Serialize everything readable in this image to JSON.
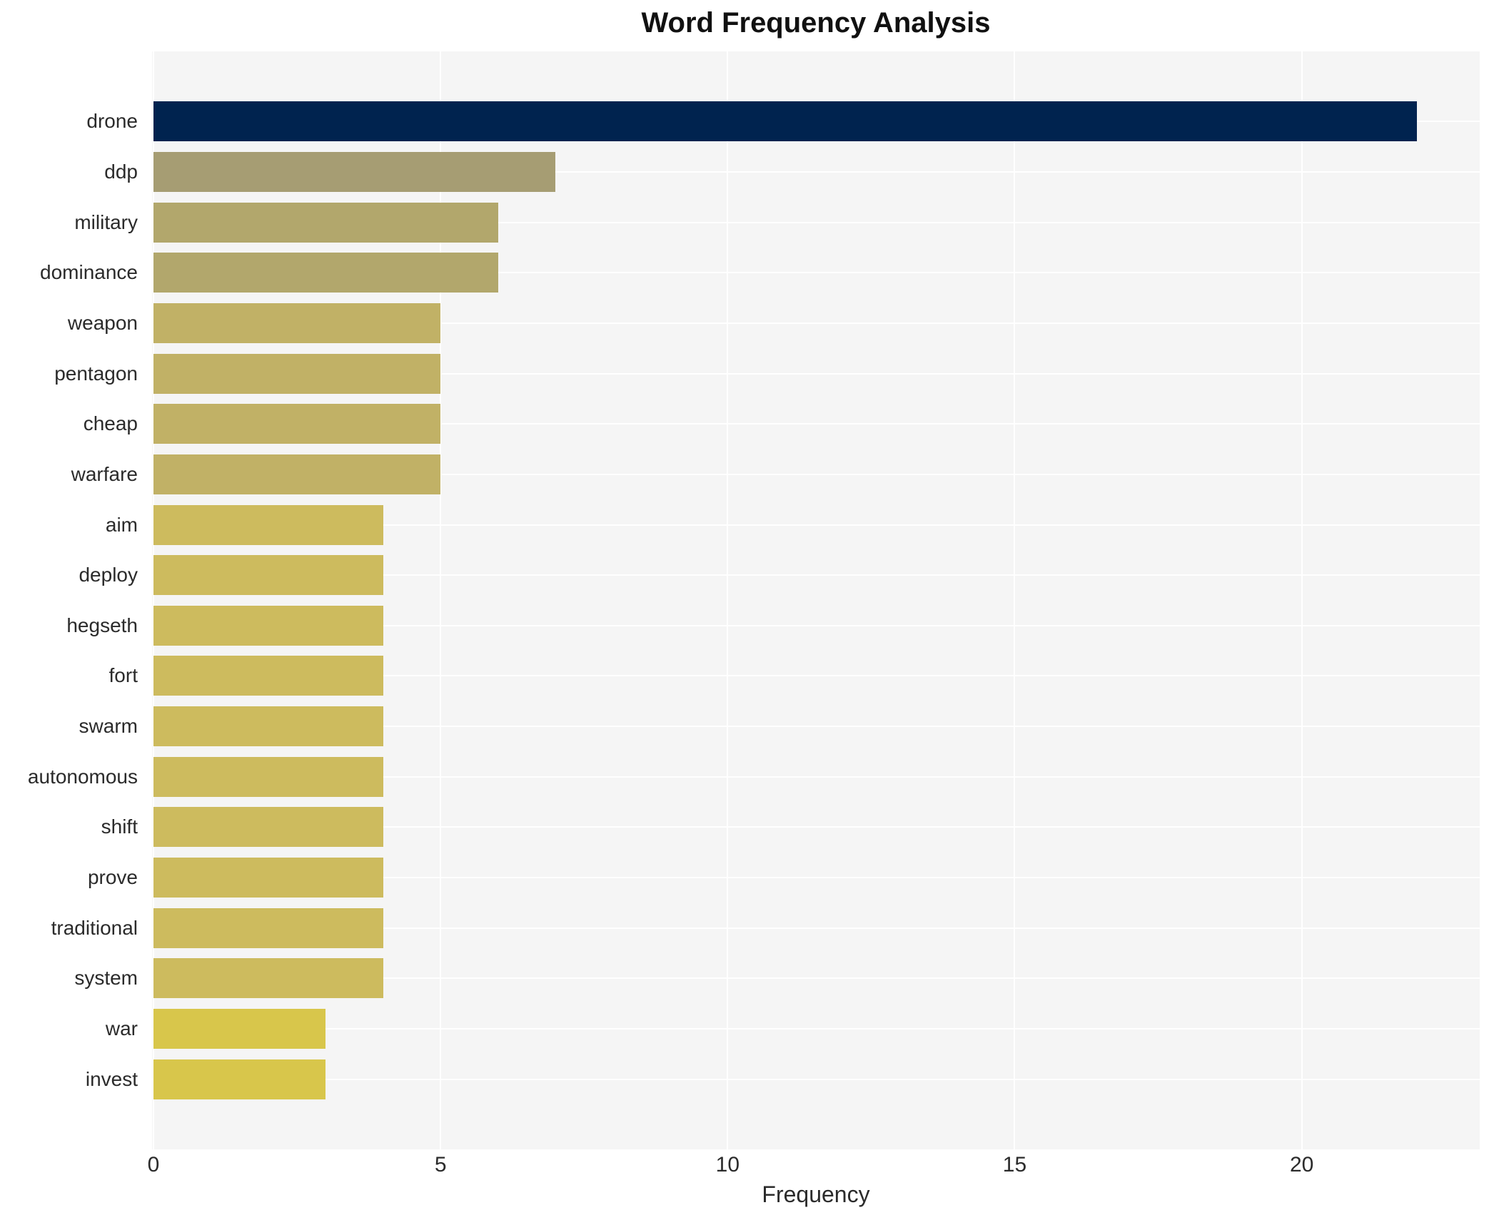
{
  "title": "Word Frequency Analysis",
  "chart_data": {
    "type": "bar",
    "orientation": "horizontal",
    "title": "Word Frequency Analysis",
    "xlabel": "Frequency",
    "ylabel": "",
    "categories": [
      "drone",
      "ddp",
      "military",
      "dominance",
      "weapon",
      "pentagon",
      "cheap",
      "warfare",
      "aim",
      "deploy",
      "hegseth",
      "fort",
      "swarm",
      "autonomous",
      "shift",
      "prove",
      "traditional",
      "system",
      "war",
      "invest"
    ],
    "values": [
      22,
      7,
      6,
      6,
      5,
      5,
      5,
      5,
      4,
      4,
      4,
      4,
      4,
      4,
      4,
      4,
      4,
      4,
      3,
      3
    ],
    "bar_colors": [
      "#00234f",
      "#a69d73",
      "#b2a76c",
      "#b2a76c",
      "#c1b166",
      "#c1b166",
      "#c1b166",
      "#c1b166",
      "#cdbb5e",
      "#cdbb5e",
      "#cdbb5e",
      "#cdbb5e",
      "#cdbb5e",
      "#cdbb5e",
      "#cdbb5e",
      "#cdbb5e",
      "#cdbb5e",
      "#cdbb5e",
      "#d8c64b",
      "#d8c64b"
    ],
    "x_ticks": [
      0,
      5,
      10,
      15,
      20
    ],
    "xlim": [
      0,
      23.1
    ],
    "grid": true,
    "legend_position": "none",
    "plot_bg_color": "#f5f5f5",
    "gridline_color": "#ffffff",
    "text_color": "#2b2b2b",
    "title_color": "#111111"
  }
}
